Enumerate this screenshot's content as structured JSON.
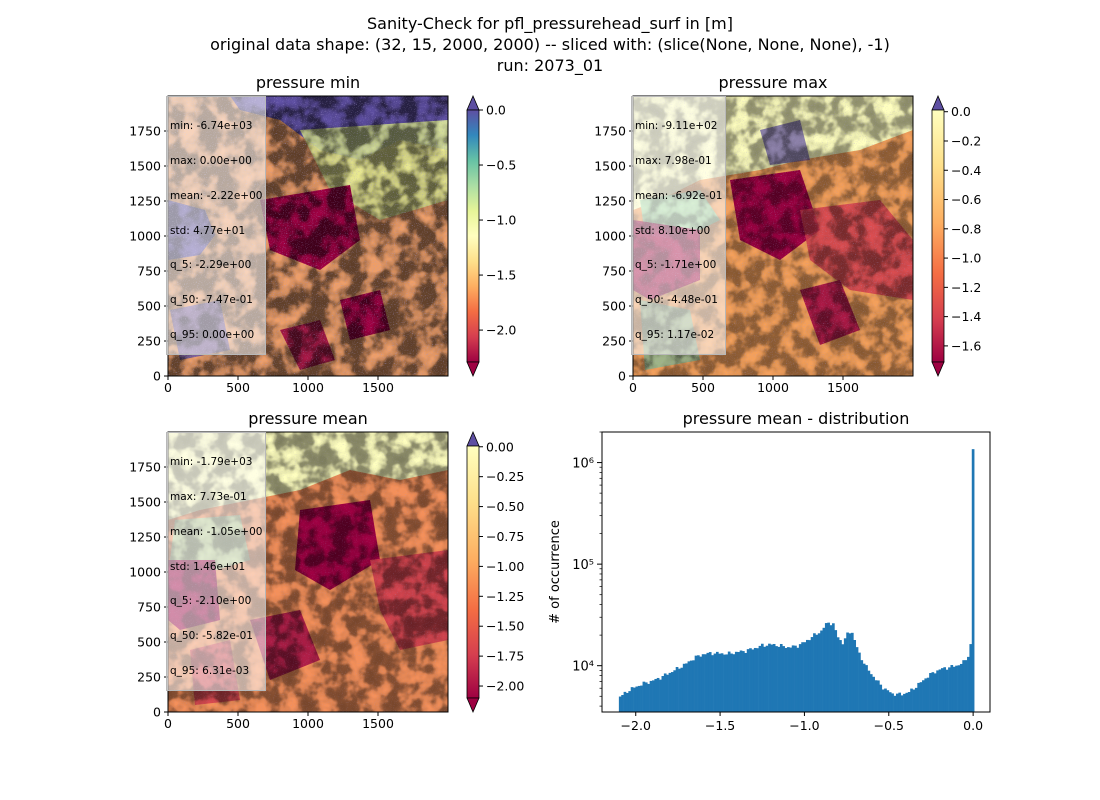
{
  "suptitle": {
    "line1": "Sanity-Check for pfl_pressurehead_surf in [m]",
    "line2": "original data shape: (32, 15, 2000, 2000) -- sliced with: (slice(None, None, None), -1)",
    "line3": "run: 2073_01"
  },
  "colors": {
    "spectral": [
      "#9e0142",
      "#d53e4f",
      "#f46d43",
      "#fdae61",
      "#fee08b",
      "#ffffbf",
      "#e6f598",
      "#abdda4",
      "#66c2a5",
      "#3288bd",
      "#5e4fa2"
    ],
    "histogram": "#1f77b4"
  },
  "chart_data": [
    {
      "type": "heatmap",
      "title": "pressure min",
      "colormap": "Spectral",
      "xlim": [
        0,
        2000
      ],
      "ylim": [
        0,
        2000
      ],
      "xticks": [
        "0",
        "500",
        "1000",
        "1500"
      ],
      "yticks": [
        "0",
        "250",
        "500",
        "750",
        "1000",
        "1250",
        "1500",
        "1750"
      ],
      "clim": [
        -2.29,
        0.0
      ],
      "colorbar_ticks": [
        "0.0",
        "-0.5",
        "-1.0",
        "-1.5",
        "-2.0"
      ],
      "colorbar_extend": "both",
      "stats": [
        "min: -6.74e+03",
        "max: 0.00e+00",
        "mean: -2.22e+00",
        "std: 4.77e+01",
        "q_5: -2.29e+00",
        "q_50: -7.47e-01",
        "q_95: 0.00e+00"
      ]
    },
    {
      "type": "heatmap",
      "title": "pressure max",
      "colormap": "Spectral",
      "xlim": [
        0,
        2000
      ],
      "ylim": [
        0,
        2000
      ],
      "xticks": [
        "0",
        "500",
        "1000",
        "1500"
      ],
      "yticks": [
        "0",
        "250",
        "500",
        "750",
        "1000",
        "1250",
        "1500",
        "1750"
      ],
      "clim": [
        -1.71,
        0.0117
      ],
      "colorbar_ticks": [
        "0.0",
        "-0.2",
        "-0.4",
        "-0.6",
        "-0.8",
        "-1.0",
        "-1.2",
        "-1.4",
        "-1.6"
      ],
      "colorbar_extend": "both",
      "stats": [
        "min: -9.11e+02",
        "max: 7.98e-01",
        "mean: -6.92e-01",
        "std: 8.10e+00",
        "q_5: -1.71e+00",
        "q_50: -4.48e-01",
        "q_95: 1.17e-02"
      ]
    },
    {
      "type": "heatmap",
      "title": "pressure mean",
      "colormap": "Spectral",
      "xlim": [
        0,
        2000
      ],
      "ylim": [
        0,
        2000
      ],
      "xticks": [
        "0",
        "500",
        "1000",
        "1500"
      ],
      "yticks": [
        "0",
        "250",
        "500",
        "750",
        "1000",
        "1250",
        "1500",
        "1750"
      ],
      "clim": [
        -2.1,
        0.0063
      ],
      "colorbar_ticks": [
        "0.00",
        "-0.25",
        "-0.50",
        "-0.75",
        "-1.00",
        "-1.25",
        "-1.50",
        "-1.75",
        "-2.00"
      ],
      "colorbar_extend": "both",
      "stats": [
        "min: -1.79e+03",
        "max: 7.73e-01",
        "mean: -1.05e+00",
        "std: 1.46e+01",
        "q_5: -2.10e+00",
        "q_50: -5.82e-01",
        "q_95: 6.31e-03"
      ]
    },
    {
      "type": "bar",
      "title": "pressure mean - distribution",
      "ylabel": "# of occurrence",
      "xlabel": "",
      "yscale": "log",
      "xlim": [
        -2.2,
        0.1
      ],
      "ylim": [
        3500,
        2000000
      ],
      "xticks": [
        -2.0,
        -1.5,
        -1.0,
        -0.5,
        0.0
      ],
      "xtick_labels": [
        "−2.0",
        "−1.5",
        "−1.0",
        "−0.5",
        "0.0"
      ],
      "yticks": [
        10000,
        100000,
        1000000
      ],
      "ytick_labels": [
        "10⁴",
        "10⁵",
        "10⁶"
      ],
      "bin_range": [
        -2.1,
        0.006
      ],
      "bin_count": 150,
      "profile_points": [
        [
          -2.1,
          4900
        ],
        [
          -2.08,
          5100
        ],
        [
          -2.05,
          5600
        ],
        [
          -2.0,
          6200
        ],
        [
          -1.95,
          6700
        ],
        [
          -1.9,
          7100
        ],
        [
          -1.85,
          7700
        ],
        [
          -1.8,
          8500
        ],
        [
          -1.75,
          9400
        ],
        [
          -1.7,
          10500
        ],
        [
          -1.65,
          12000
        ],
        [
          -1.6,
          13000
        ],
        [
          -1.55,
          13300
        ],
        [
          -1.5,
          13200
        ],
        [
          -1.45,
          13100
        ],
        [
          -1.4,
          13600
        ],
        [
          -1.35,
          14000
        ],
        [
          -1.3,
          14800
        ],
        [
          -1.25,
          15800
        ],
        [
          -1.2,
          16200
        ],
        [
          -1.15,
          15800
        ],
        [
          -1.1,
          15200
        ],
        [
          -1.05,
          15500
        ],
        [
          -1.0,
          17000
        ],
        [
          -0.95,
          19500
        ],
        [
          -0.9,
          22000
        ],
        [
          -0.86,
          27000
        ],
        [
          -0.83,
          25500
        ],
        [
          -0.8,
          19000
        ],
        [
          -0.77,
          16500
        ],
        [
          -0.74,
          21500
        ],
        [
          -0.72,
          22000
        ],
        [
          -0.7,
          17000
        ],
        [
          -0.67,
          12500
        ],
        [
          -0.63,
          9500
        ],
        [
          -0.58,
          7400
        ],
        [
          -0.53,
          6000
        ],
        [
          -0.48,
          5300
        ],
        [
          -0.43,
          5200
        ],
        [
          -0.38,
          5500
        ],
        [
          -0.33,
          6400
        ],
        [
          -0.28,
          7600
        ],
        [
          -0.23,
          8700
        ],
        [
          -0.18,
          9400
        ],
        [
          -0.12,
          9800
        ],
        [
          -0.08,
          10300
        ],
        [
          -0.05,
          11000
        ],
        [
          -0.03,
          12500
        ],
        [
          -0.015,
          16000
        ],
        [
          -0.005,
          27000
        ],
        [
          0.0,
          1350000
        ]
      ]
    }
  ]
}
